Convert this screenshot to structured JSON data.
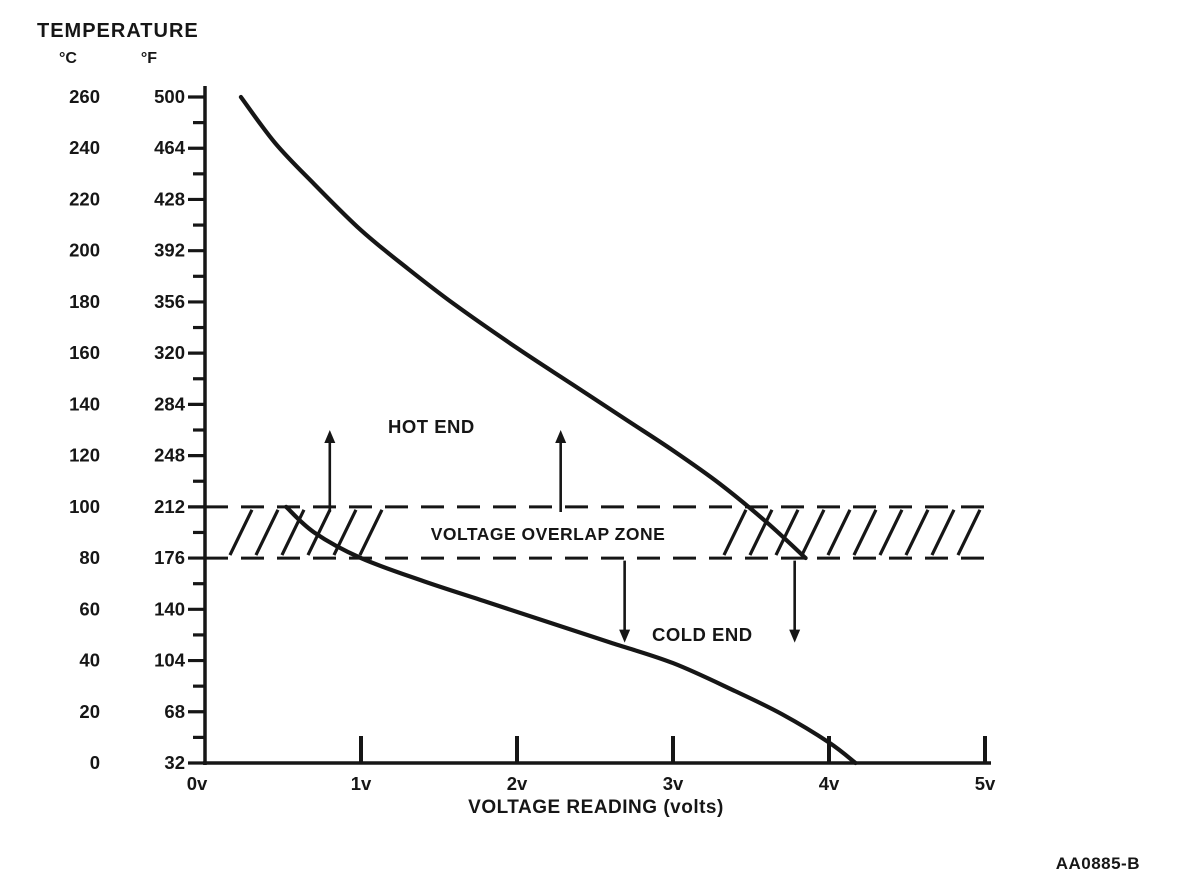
{
  "figure_id": "AA0885-B",
  "chart_data": {
    "type": "line",
    "title": "TEMPERATURE",
    "background": "#ffffff",
    "ink_color": "#161616",
    "y_axis": {
      "title": "TEMPERATURE",
      "unit_primary": "°C",
      "unit_secondary": "°F",
      "range_c": [
        0,
        260
      ],
      "minor_tick_step_c": 10,
      "ticks_c": [
        260,
        240,
        220,
        200,
        180,
        160,
        140,
        120,
        100,
        80,
        60,
        40,
        20,
        0
      ],
      "ticks_f": [
        500,
        464,
        428,
        392,
        356,
        320,
        284,
        248,
        212,
        176,
        140,
        104,
        68,
        32
      ]
    },
    "x_axis": {
      "title": "VOLTAGE READING (volts)",
      "range_v": [
        0,
        5
      ],
      "ticks": [
        {
          "v": 0,
          "label": "0v"
        },
        {
          "v": 1,
          "label": "1v"
        },
        {
          "v": 2,
          "label": "2v"
        },
        {
          "v": 3,
          "label": "3v"
        },
        {
          "v": 4,
          "label": "4v"
        },
        {
          "v": 5,
          "label": "5v"
        }
      ]
    },
    "series": [
      {
        "name": "HOT END",
        "points": [
          [
            0.23,
            260
          ],
          [
            0.45,
            242
          ],
          [
            0.7,
            226
          ],
          [
            1.0,
            208
          ],
          [
            1.3,
            193
          ],
          [
            1.6,
            179
          ],
          [
            2.0,
            162
          ],
          [
            2.35,
            148
          ],
          [
            2.7,
            134
          ],
          [
            3.0,
            122
          ],
          [
            3.3,
            109
          ],
          [
            3.6,
            94
          ],
          [
            3.85,
            80
          ]
        ]
      },
      {
        "name": "COLD END",
        "points": [
          [
            0.52,
            100
          ],
          [
            0.7,
            90
          ],
          [
            1.0,
            80
          ],
          [
            1.4,
            71
          ],
          [
            1.8,
            63
          ],
          [
            2.2,
            55
          ],
          [
            2.6,
            47
          ],
          [
            3.0,
            39
          ],
          [
            3.4,
            28
          ],
          [
            3.7,
            19
          ],
          [
            4.0,
            8
          ],
          [
            4.17,
            0
          ]
        ]
      }
    ],
    "overlap_zone": {
      "label": "VOLTAGE OVERLAP ZONE",
      "temp_range_c": [
        80,
        100
      ],
      "volt_range": [
        0.16,
        4.9
      ]
    },
    "arrows": [
      {
        "direction": "up",
        "v": 0.8,
        "from_c": 98,
        "to_c": 130
      },
      {
        "direction": "up",
        "v": 2.28,
        "from_c": 98,
        "to_c": 130
      },
      {
        "direction": "down",
        "v": 2.69,
        "from_c": 79,
        "to_c": 47
      },
      {
        "direction": "down",
        "v": 3.78,
        "from_c": 79,
        "to_c": 47
      }
    ]
  }
}
